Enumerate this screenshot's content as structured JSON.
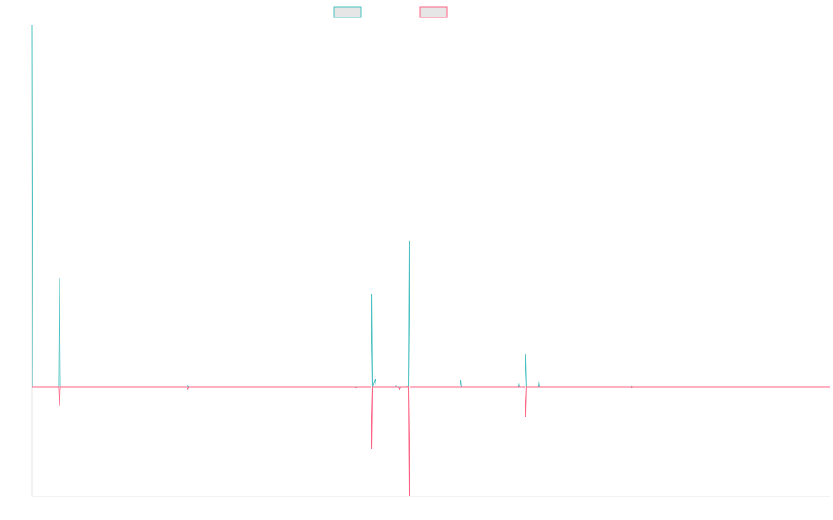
{
  "chart_data": {
    "type": "line",
    "title": "",
    "xlabel": "",
    "ylabel": "",
    "grid": false,
    "legend_position": "top-center",
    "ylim": [
      -158,
      522
    ],
    "series": [
      {
        "color": "#4bc0c0",
        "legend_fill": "#e6e6e6",
        "points": [
          [
            0,
            522
          ],
          [
            1,
            0
          ],
          [
            39,
            0
          ],
          [
            40,
            157
          ],
          [
            41,
            0
          ],
          [
            224,
            0
          ],
          [
            225,
            1
          ],
          [
            226,
            0
          ],
          [
            467,
            0
          ],
          [
            468,
            0
          ],
          [
            489,
            0
          ],
          [
            490,
            134
          ],
          [
            491,
            0
          ],
          [
            492,
            0
          ],
          [
            495,
            12
          ],
          [
            496,
            0
          ],
          [
            524,
            0
          ],
          [
            525,
            2
          ],
          [
            526,
            0
          ],
          [
            540,
            0
          ],
          [
            541,
            1
          ],
          [
            542,
            0
          ],
          [
            543,
            0
          ],
          [
            544,
            210
          ],
          [
            545,
            0
          ],
          [
            617,
            0
          ],
          [
            618,
            10
          ],
          [
            619,
            0
          ],
          [
            701,
            0
          ],
          [
            702,
            6
          ],
          [
            703,
            0
          ],
          [
            711,
            0
          ],
          [
            712,
            47
          ],
          [
            713,
            0
          ],
          [
            730,
            0
          ],
          [
            731,
            9
          ],
          [
            732,
            0
          ],
          [
            864,
            0
          ],
          [
            865,
            1
          ],
          [
            866,
            0
          ],
          [
            1150,
            0
          ]
        ]
      },
      {
        "color": "#ff6384",
        "legend_fill": "#e6e6e6",
        "points": [
          [
            0,
            0
          ],
          [
            39,
            0
          ],
          [
            40,
            -28
          ],
          [
            41,
            0
          ],
          [
            224,
            0
          ],
          [
            225,
            -3
          ],
          [
            226,
            0
          ],
          [
            467,
            0
          ],
          [
            468,
            -1
          ],
          [
            469,
            0
          ],
          [
            489,
            0
          ],
          [
            490,
            -89
          ],
          [
            491,
            0
          ],
          [
            529,
            0
          ],
          [
            530,
            -3
          ],
          [
            531,
            0
          ],
          [
            543,
            0
          ],
          [
            544,
            -158
          ],
          [
            545,
            0
          ],
          [
            711,
            0
          ],
          [
            712,
            -44
          ],
          [
            713,
            0
          ],
          [
            864,
            0
          ],
          [
            865,
            -2
          ],
          [
            866,
            0
          ],
          [
            1150,
            0
          ]
        ]
      }
    ]
  }
}
